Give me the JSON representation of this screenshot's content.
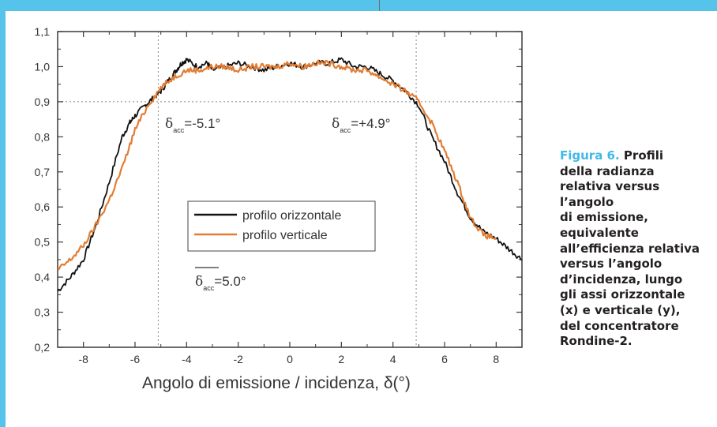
{
  "colors": {
    "frame_accent": "#56c4ea",
    "caption_accent": "#3fb9e8",
    "caption_text": "#231f20",
    "series_horizontal": "#111111",
    "series_vertical": "#e27d33"
  },
  "caption": {
    "label": "Figura 6.",
    "lines": [
      "Profili",
      "della radianza",
      "relativa versus",
      "l’angolo",
      "di emissione,",
      "equivalente",
      "all’efficienza relativa",
      "versus l’angolo",
      "d’incidenza, lungo",
      "gli assi orizzontale",
      "(x) e verticale (y),",
      "del concentratore",
      "Rondine-2."
    ]
  },
  "chart_data": {
    "type": "line",
    "title": "",
    "xlabel": "Angolo di emissione / incidenza, δ(°)",
    "ylabel": "",
    "xlim": [
      -9,
      9
    ],
    "ylim": [
      0.2,
      1.1
    ],
    "xticks": [
      -8,
      -6,
      -4,
      -2,
      0,
      2,
      4,
      6,
      8
    ],
    "xtick_labels": [
      "-8",
      "-6",
      "-4",
      "-2",
      "0",
      "2",
      "4",
      "6",
      "8"
    ],
    "yticks": [
      0.2,
      0.3,
      0.4,
      0.5,
      0.6,
      0.7,
      0.8,
      0.9,
      1.0,
      1.1
    ],
    "ytick_labels": [
      "0,2",
      "0,3",
      "0,4",
      "0,5",
      "0,6",
      "0,7",
      "0,8",
      "0,9",
      "1,0",
      "1,1"
    ],
    "grid": "dotted lines at y=0.9, x=-5.1 and x=4.9",
    "legend": {
      "placement": "center",
      "entries": [
        "profilo orizzontale",
        "profilo verticale"
      ],
      "note": {
        "symbol": "δ",
        "subscript": "acc",
        "text": "=5.0°"
      }
    },
    "annotations": [
      {
        "symbol": "δ",
        "subscript": "acc",
        "text": "=-5.1°"
      },
      {
        "symbol": "δ",
        "subscript": "acc",
        "text": "=+4.9°"
      }
    ],
    "reference_lines": {
      "y": 0.9,
      "x": [
        -5.1,
        4.9
      ]
    },
    "series": [
      {
        "name": "profilo orizzontale",
        "x": [
          -9.0,
          -8.5,
          -8.0,
          -7.5,
          -7.0,
          -6.5,
          -6.2,
          -6.0,
          -5.6,
          -5.3,
          -5.0,
          -4.7,
          -4.4,
          -4.2,
          -4.0,
          -3.6,
          -3.2,
          -3.0,
          -2.5,
          -2.0,
          -1.5,
          -1.0,
          -0.5,
          0.0,
          0.5,
          1.0,
          1.5,
          2.0,
          2.5,
          3.0,
          3.5,
          4.0,
          4.5,
          5.0,
          5.5,
          6.0,
          6.5,
          7.0,
          7.5,
          8.0,
          8.5,
          9.0
        ],
        "y": [
          0.36,
          0.4,
          0.45,
          0.55,
          0.67,
          0.8,
          0.84,
          0.86,
          0.89,
          0.91,
          0.93,
          0.96,
          0.99,
          1.01,
          1.02,
          1.0,
          1.01,
          0.99,
          1.0,
          1.01,
          1.0,
          0.99,
          1.0,
          1.01,
          1.0,
          1.01,
          1.01,
          1.02,
          1.0,
          1.0,
          0.98,
          0.96,
          0.93,
          0.89,
          0.8,
          0.73,
          0.64,
          0.57,
          0.53,
          0.51,
          0.48,
          0.45
        ]
      },
      {
        "name": "profilo verticale",
        "x": [
          -9.0,
          -8.5,
          -8.0,
          -7.5,
          -7.0,
          -6.5,
          -6.0,
          -5.5,
          -5.0,
          -4.5,
          -4.0,
          -3.5,
          -3.0,
          -2.5,
          -2.0,
          -1.5,
          -1.0,
          -0.5,
          0.0,
          0.5,
          1.0,
          1.5,
          2.0,
          2.5,
          3.0,
          3.5,
          4.0,
          4.5,
          5.0,
          5.5,
          6.0,
          6.5,
          7.0,
          7.5,
          8.0
        ],
        "y": [
          0.42,
          0.45,
          0.49,
          0.55,
          0.62,
          0.71,
          0.82,
          0.89,
          0.94,
          0.97,
          0.99,
          0.99,
          1.0,
          1.0,
          0.99,
          1.0,
          1.0,
          1.0,
          1.01,
          1.0,
          1.01,
          1.01,
          1.0,
          0.99,
          0.99,
          0.97,
          0.95,
          0.93,
          0.9,
          0.84,
          0.76,
          0.67,
          0.57,
          0.52,
          0.51
        ]
      }
    ]
  }
}
